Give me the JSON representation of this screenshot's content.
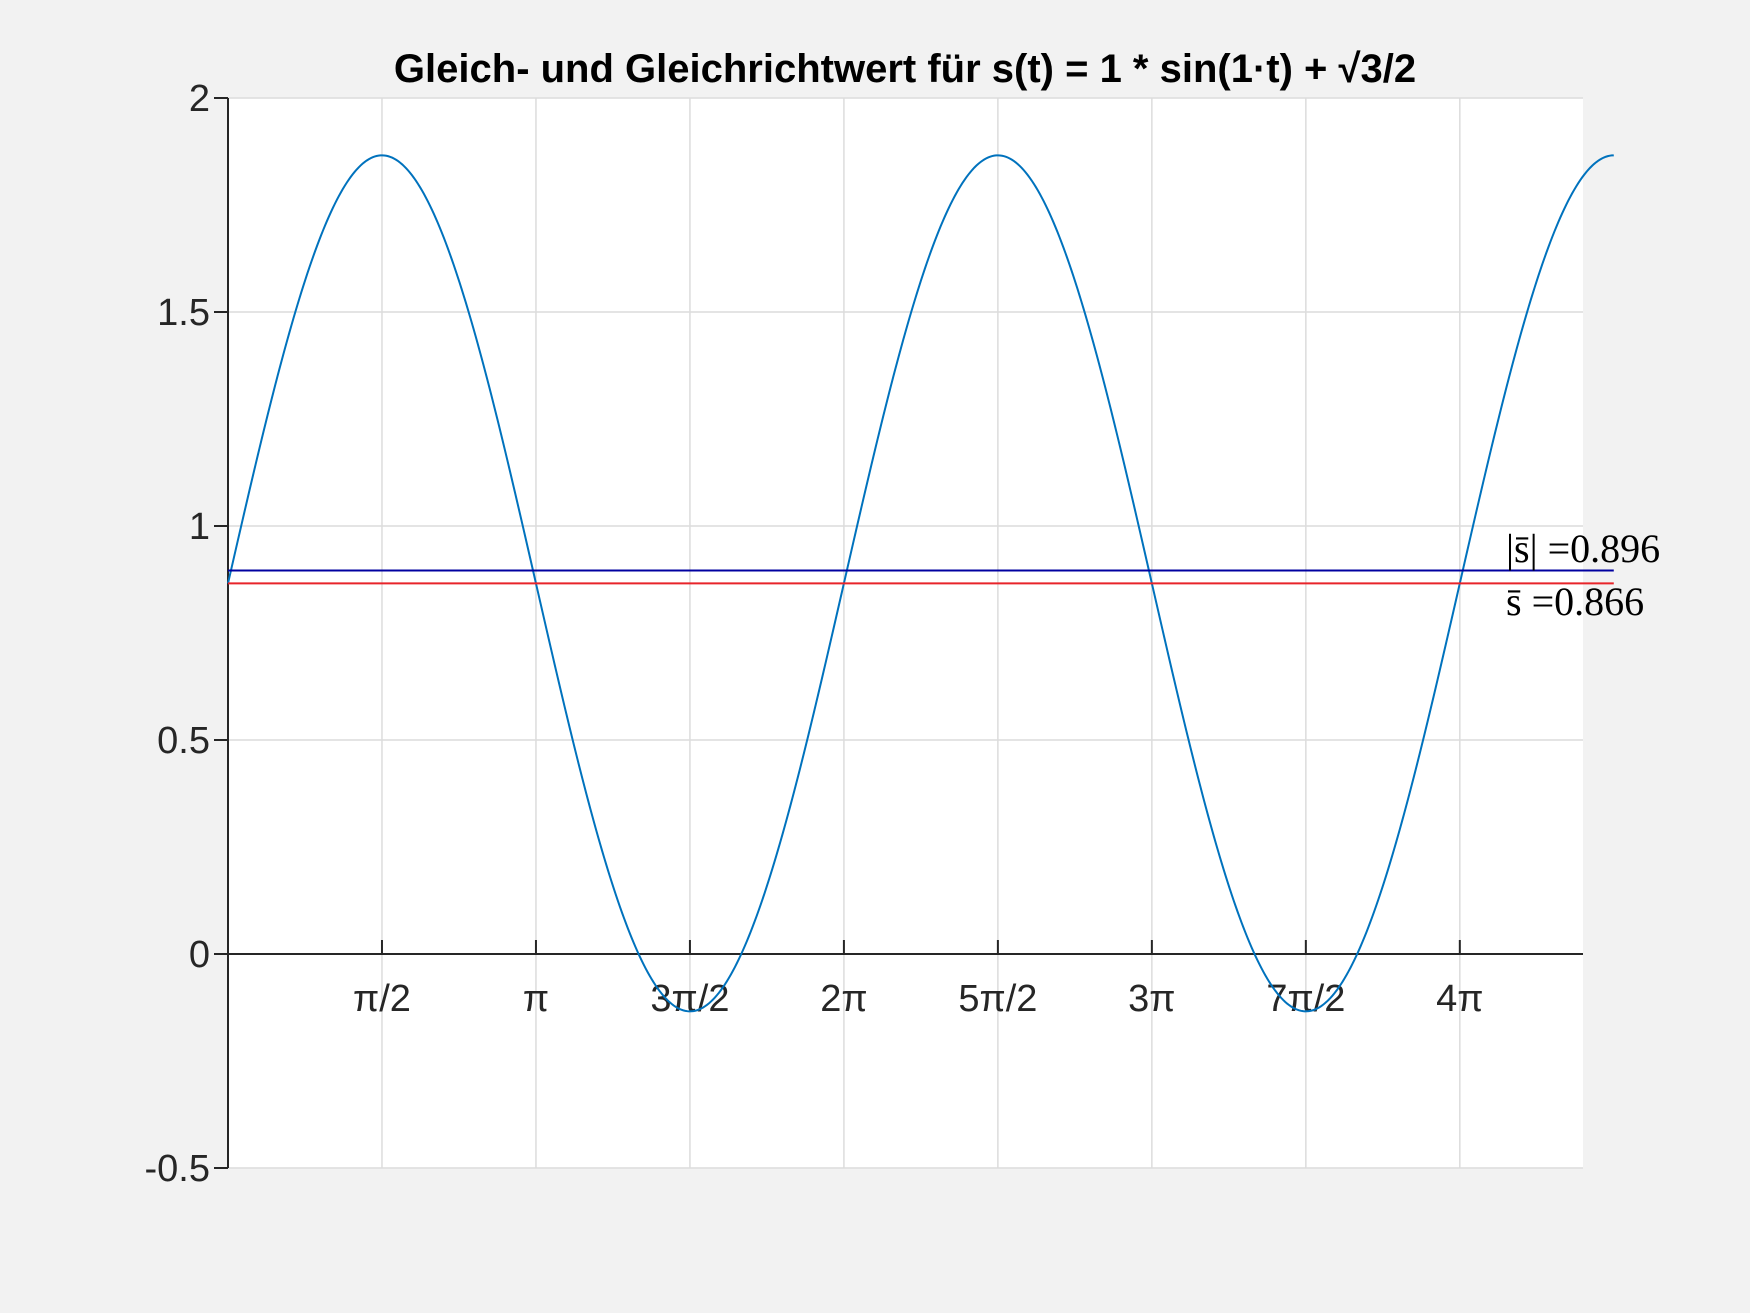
{
  "chart_data": {
    "type": "line",
    "title": "Gleich- und Gleichrichtwert für s(t) = 1 * sin(1·t) + √3/2",
    "xlabel": "",
    "ylabel": "",
    "xlim": [
      0,
      13.823
    ],
    "ylim": [
      -0.5,
      2
    ],
    "grid": true,
    "x_tick_values": [
      1.5708,
      3.1416,
      4.7124,
      6.2832,
      7.854,
      9.4248,
      10.9956,
      12.5664
    ],
    "x_tick_labels": [
      "π/2",
      "π",
      "3π/2",
      "2π",
      "5π/2",
      "3π",
      "7π/2",
      "4π"
    ],
    "y_tick_values": [
      -0.5,
      0,
      0.5,
      1,
      1.5,
      2
    ],
    "y_tick_labels": [
      "-0.5",
      "0",
      "0.5",
      "1",
      "1.5",
      "2"
    ],
    "curve": {
      "function": "1 * sin(1·t) + √3/2",
      "amplitude": 1,
      "omega": 1,
      "offset": 0.8660254,
      "t_range": [
        0,
        14.137
      ],
      "color": "#0072bd"
    },
    "series": [
      {
        "name": "|s̄| =0.896",
        "value": 0.896,
        "color": "#0000a0"
      },
      {
        "name": "s̄ =0.866",
        "value": 0.866,
        "color": "#e8242a"
      }
    ]
  }
}
